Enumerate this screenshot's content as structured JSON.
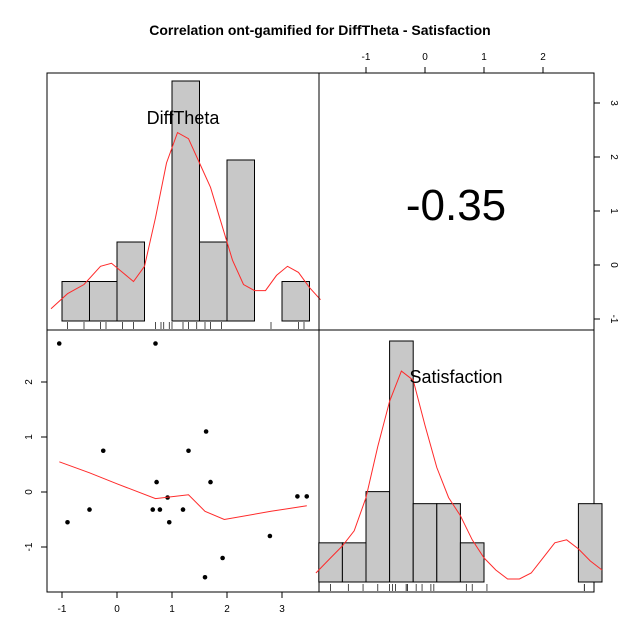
{
  "chart_data": {
    "type": "scatter",
    "title": "Correlation ont-gamified for DiffTheta - Satisfaction",
    "variables": [
      "DiffTheta",
      "Satisfaction"
    ],
    "correlation_label": "-0.35",
    "ticks": {
      "difftheta": [
        "-1",
        "0",
        "1",
        "2",
        "3"
      ],
      "satisfaction": [
        "-1",
        "0",
        "1",
        "2"
      ]
    },
    "difftheta_hist": {
      "breaks": [
        -1.0,
        -0.5,
        0.0,
        0.5,
        1.0,
        1.5,
        2.0,
        2.5,
        3.0,
        3.5
      ],
      "density": [
        0.13,
        0.13,
        0.26,
        0.0,
        0.79,
        0.26,
        0.53,
        0.0,
        0.13,
        0.26
      ],
      "density_curve": [
        [
          -1.2,
          0.04
        ],
        [
          -0.9,
          0.09
        ],
        [
          -0.6,
          0.12
        ],
        [
          -0.3,
          0.18
        ],
        [
          -0.1,
          0.19
        ],
        [
          0.1,
          0.16
        ],
        [
          0.3,
          0.13
        ],
        [
          0.5,
          0.18
        ],
        [
          0.7,
          0.34
        ],
        [
          0.9,
          0.52
        ],
        [
          1.1,
          0.62
        ],
        [
          1.3,
          0.6
        ],
        [
          1.5,
          0.52
        ],
        [
          1.7,
          0.44
        ],
        [
          1.9,
          0.32
        ],
        [
          2.1,
          0.2
        ],
        [
          2.3,
          0.12
        ],
        [
          2.5,
          0.1
        ],
        [
          2.7,
          0.1
        ],
        [
          2.9,
          0.15
        ],
        [
          3.1,
          0.18
        ],
        [
          3.3,
          0.16
        ],
        [
          3.5,
          0.11
        ],
        [
          3.7,
          0.07
        ]
      ],
      "rug": [
        -0.9,
        -0.6,
        -0.3,
        -0.2,
        0.1,
        0.3,
        0.7,
        0.8,
        0.85,
        0.95,
        1.0,
        1.2,
        1.3,
        1.45,
        1.6,
        1.7,
        1.9,
        2.8,
        3.3,
        3.4
      ]
    },
    "satisfaction_hist": {
      "breaks": [
        -1.8,
        -1.4,
        -1.0,
        -0.6,
        -0.2,
        0.2,
        0.6,
        1.0,
        1.4,
        1.8,
        2.2,
        2.6,
        3.0
      ],
      "density": [
        0.13,
        0.13,
        0.3,
        0.8,
        0.26,
        0.26,
        0.13,
        0.0,
        0.0,
        0.0,
        0.0,
        0.26
      ],
      "density_curve": [
        [
          -1.85,
          0.03
        ],
        [
          -1.6,
          0.08
        ],
        [
          -1.4,
          0.12
        ],
        [
          -1.2,
          0.17
        ],
        [
          -1.0,
          0.28
        ],
        [
          -0.8,
          0.45
        ],
        [
          -0.6,
          0.6
        ],
        [
          -0.4,
          0.7
        ],
        [
          -0.2,
          0.67
        ],
        [
          0.0,
          0.52
        ],
        [
          0.2,
          0.38
        ],
        [
          0.4,
          0.28
        ],
        [
          0.6,
          0.22
        ],
        [
          0.8,
          0.14
        ],
        [
          1.0,
          0.08
        ],
        [
          1.2,
          0.04
        ],
        [
          1.4,
          0.01
        ],
        [
          1.6,
          0.01
        ],
        [
          1.8,
          0.03
        ],
        [
          2.0,
          0.08
        ],
        [
          2.2,
          0.13
        ],
        [
          2.4,
          0.14
        ],
        [
          2.6,
          0.11
        ],
        [
          2.8,
          0.07
        ],
        [
          3.0,
          0.04
        ]
      ],
      "rug": [
        -1.6,
        -1.3,
        -1.05,
        -0.8,
        -0.6,
        -0.55,
        -0.5,
        -0.32,
        -0.3,
        -0.3,
        -0.15,
        -0.05,
        0.1,
        0.15,
        0.7,
        0.8,
        1.05,
        2.7,
        2.7
      ]
    },
    "scatter": {
      "x": [
        -1.05,
        -0.9,
        -0.5,
        -0.25,
        0.65,
        0.7,
        0.72,
        0.78,
        0.92,
        0.95,
        1.2,
        1.3,
        1.6,
        1.62,
        1.7,
        1.92,
        2.78,
        3.28,
        3.45
      ],
      "y": [
        2.7,
        -0.55,
        -0.32,
        0.75,
        -0.32,
        2.7,
        0.18,
        -0.32,
        -0.1,
        -0.55,
        -0.32,
        0.75,
        -1.55,
        1.1,
        0.18,
        -1.2,
        -0.8,
        -0.08,
        -0.08
      ]
    },
    "loess": {
      "x": [
        -1.05,
        -0.5,
        0.0,
        0.7,
        1.3,
        1.6,
        1.95,
        2.8,
        3.45
      ],
      "y": [
        0.55,
        0.35,
        0.15,
        -0.12,
        -0.05,
        -0.35,
        -0.5,
        -0.35,
        -0.25
      ]
    },
    "colors": {
      "hist_fill": "#c8c8c8",
      "curve": "#ff2a2a",
      "points": "#000000",
      "frame": "#000000"
    }
  }
}
